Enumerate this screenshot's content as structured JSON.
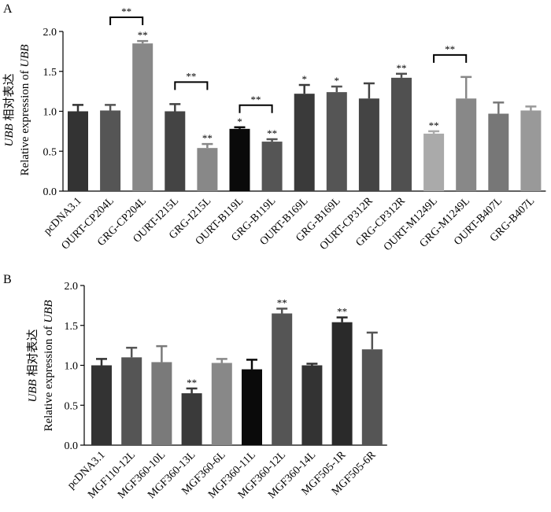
{
  "chart_data": [
    {
      "panel_label": "A",
      "type": "bar",
      "ylabel_cn_gene": "UBB",
      "ylabel_cn_text": " 相对表达",
      "ylabel_en_text": "Relative expression of ",
      "ylabel_en_gene": "UBB",
      "ylim": [
        0,
        2.0
      ],
      "yticks": [
        "0.0",
        "0.5",
        "1.0",
        "1.5",
        "2.0"
      ],
      "categories": [
        "pcDNA3.1",
        "OURT-CP204L",
        "GRG-CP204L",
        "OURT-I215L",
        "GRG-I215L",
        "OURT-B119L",
        "GRG-B119L",
        "OURT-B169L",
        "GRG-B169L",
        "OURT-CP312R",
        "GRG-CP312R",
        "OURT-M1249L",
        "GRG-M1249L",
        "OURT-B407L",
        "GRG-B407L"
      ],
      "values": [
        1.0,
        1.01,
        1.85,
        1.0,
        0.54,
        0.78,
        0.62,
        1.22,
        1.24,
        1.16,
        1.42,
        0.72,
        1.16,
        0.97,
        1.01
      ],
      "errors": [
        0.08,
        0.07,
        0.03,
        0.09,
        0.05,
        0.02,
        0.03,
        0.11,
        0.07,
        0.19,
        0.05,
        0.03,
        0.27,
        0.14,
        0.05
      ],
      "colors": [
        "#333333",
        "#555555",
        "#888888",
        "#444444",
        "#888888",
        "#0a0a0a",
        "#555555",
        "#3a3a3a",
        "#555555",
        "#444444",
        "#505050",
        "#aaaaaa",
        "#888888",
        "#777777",
        "#999999"
      ],
      "significance": [
        "",
        "",
        "**",
        "",
        "**",
        "*",
        "**",
        "*",
        "*",
        "",
        "**",
        "**",
        "",
        "",
        ""
      ],
      "comparisons": [
        {
          "from": 1,
          "to": 2,
          "label": "**"
        },
        {
          "from": 3,
          "to": 4,
          "label": "**"
        },
        {
          "from": 5,
          "to": 6,
          "label": "**"
        },
        {
          "from": 11,
          "to": 12,
          "label": "**"
        }
      ]
    },
    {
      "panel_label": "B",
      "type": "bar",
      "ylabel_cn_gene": "UBB",
      "ylabel_cn_text": " 相对表达",
      "ylabel_en_text": "Relative expression of ",
      "ylabel_en_gene": "UBB",
      "ylim": [
        0,
        2.0
      ],
      "yticks": [
        "0.0",
        "0.5",
        "1.0",
        "1.5",
        "2.0"
      ],
      "categories": [
        "pcDNA3.1",
        "MGF110-12L",
        "MGF360-10L",
        "MGF360-13L",
        "MGF360-6L",
        "MGF360-11L",
        "MGF360-12L",
        "MGF360-14L",
        "MGF505-1R",
        "MGF505-6R"
      ],
      "values": [
        1.0,
        1.1,
        1.04,
        0.65,
        1.03,
        0.95,
        1.65,
        1.0,
        1.54,
        1.2
      ],
      "errors": [
        0.08,
        0.12,
        0.2,
        0.06,
        0.05,
        0.12,
        0.06,
        0.02,
        0.06,
        0.21
      ],
      "colors": [
        "#333333",
        "#555555",
        "#7a7a7a",
        "#3a3a3a",
        "#888888",
        "#0a0a0a",
        "#555555",
        "#333333",
        "#2a2a2a",
        "#555555"
      ],
      "significance": [
        "",
        "",
        "",
        "**",
        "",
        "",
        "**",
        "",
        "**",
        ""
      ],
      "comparisons": []
    }
  ]
}
